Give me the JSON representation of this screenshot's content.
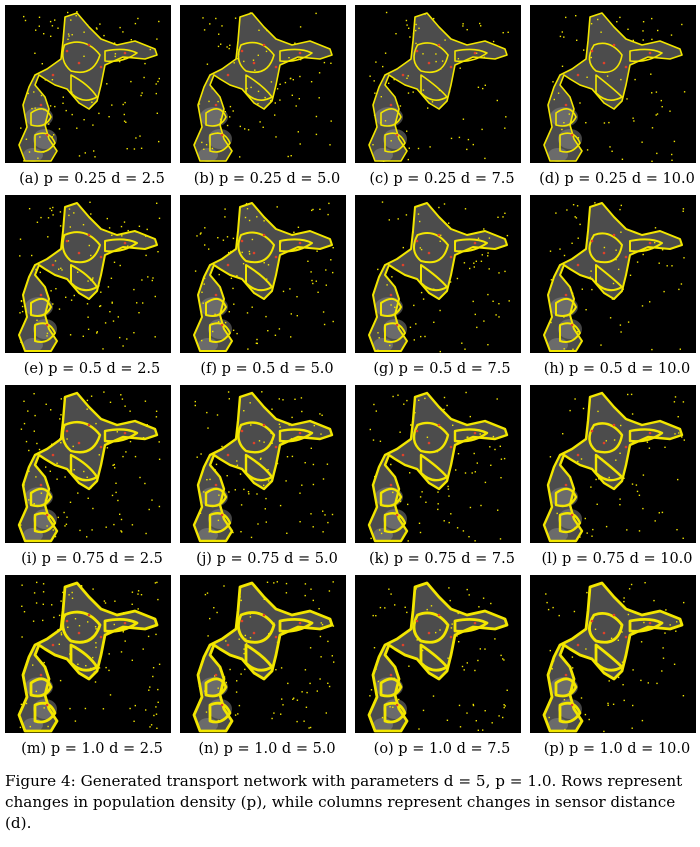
{
  "panels": [
    {
      "label": "(a)",
      "p": "0.25",
      "d": "2.5"
    },
    {
      "label": "(b)",
      "p": "0.25",
      "d": "5.0"
    },
    {
      "label": "(c)",
      "p": "0.25",
      "d": "7.5"
    },
    {
      "label": "(d)",
      "p": "0.25",
      "d": "10.0"
    },
    {
      "label": "(e)",
      "p": "0.5",
      "d": "2.5"
    },
    {
      "label": "(f)",
      "p": "0.5",
      "d": "5.0"
    },
    {
      "label": "(g)",
      "p": "0.5",
      "d": "7.5"
    },
    {
      "label": "(h)",
      "p": "0.5",
      "d": "10.0"
    },
    {
      "label": "(i)",
      "p": "0.75",
      "d": "2.5"
    },
    {
      "label": "(j)",
      "p": "0.75",
      "d": "5.0"
    },
    {
      "label": "(k)",
      "p": "0.75",
      "d": "7.5"
    },
    {
      "label": "(l)",
      "p": "0.75",
      "d": "10.0"
    },
    {
      "label": "(m)",
      "p": "1.0",
      "d": "2.5"
    },
    {
      "label": "(n)",
      "p": "1.0",
      "d": "5.0"
    },
    {
      "label": "(o)",
      "p": "1.0",
      "d": "7.5"
    },
    {
      "label": "(p)",
      "p": "1.0",
      "d": "10.0"
    }
  ],
  "caption": {
    "line1": "Figure 4: Generated transport network with parameters d = 5, p = 1.0. Rows represent",
    "line2": "changes in population density (p), while columns represent changes in sensor distance",
    "line3": "(d)."
  },
  "colors": {
    "network": "#f2e600",
    "background": "#000000",
    "cell": "#8a8a8a",
    "nodes": "#e0402a"
  }
}
